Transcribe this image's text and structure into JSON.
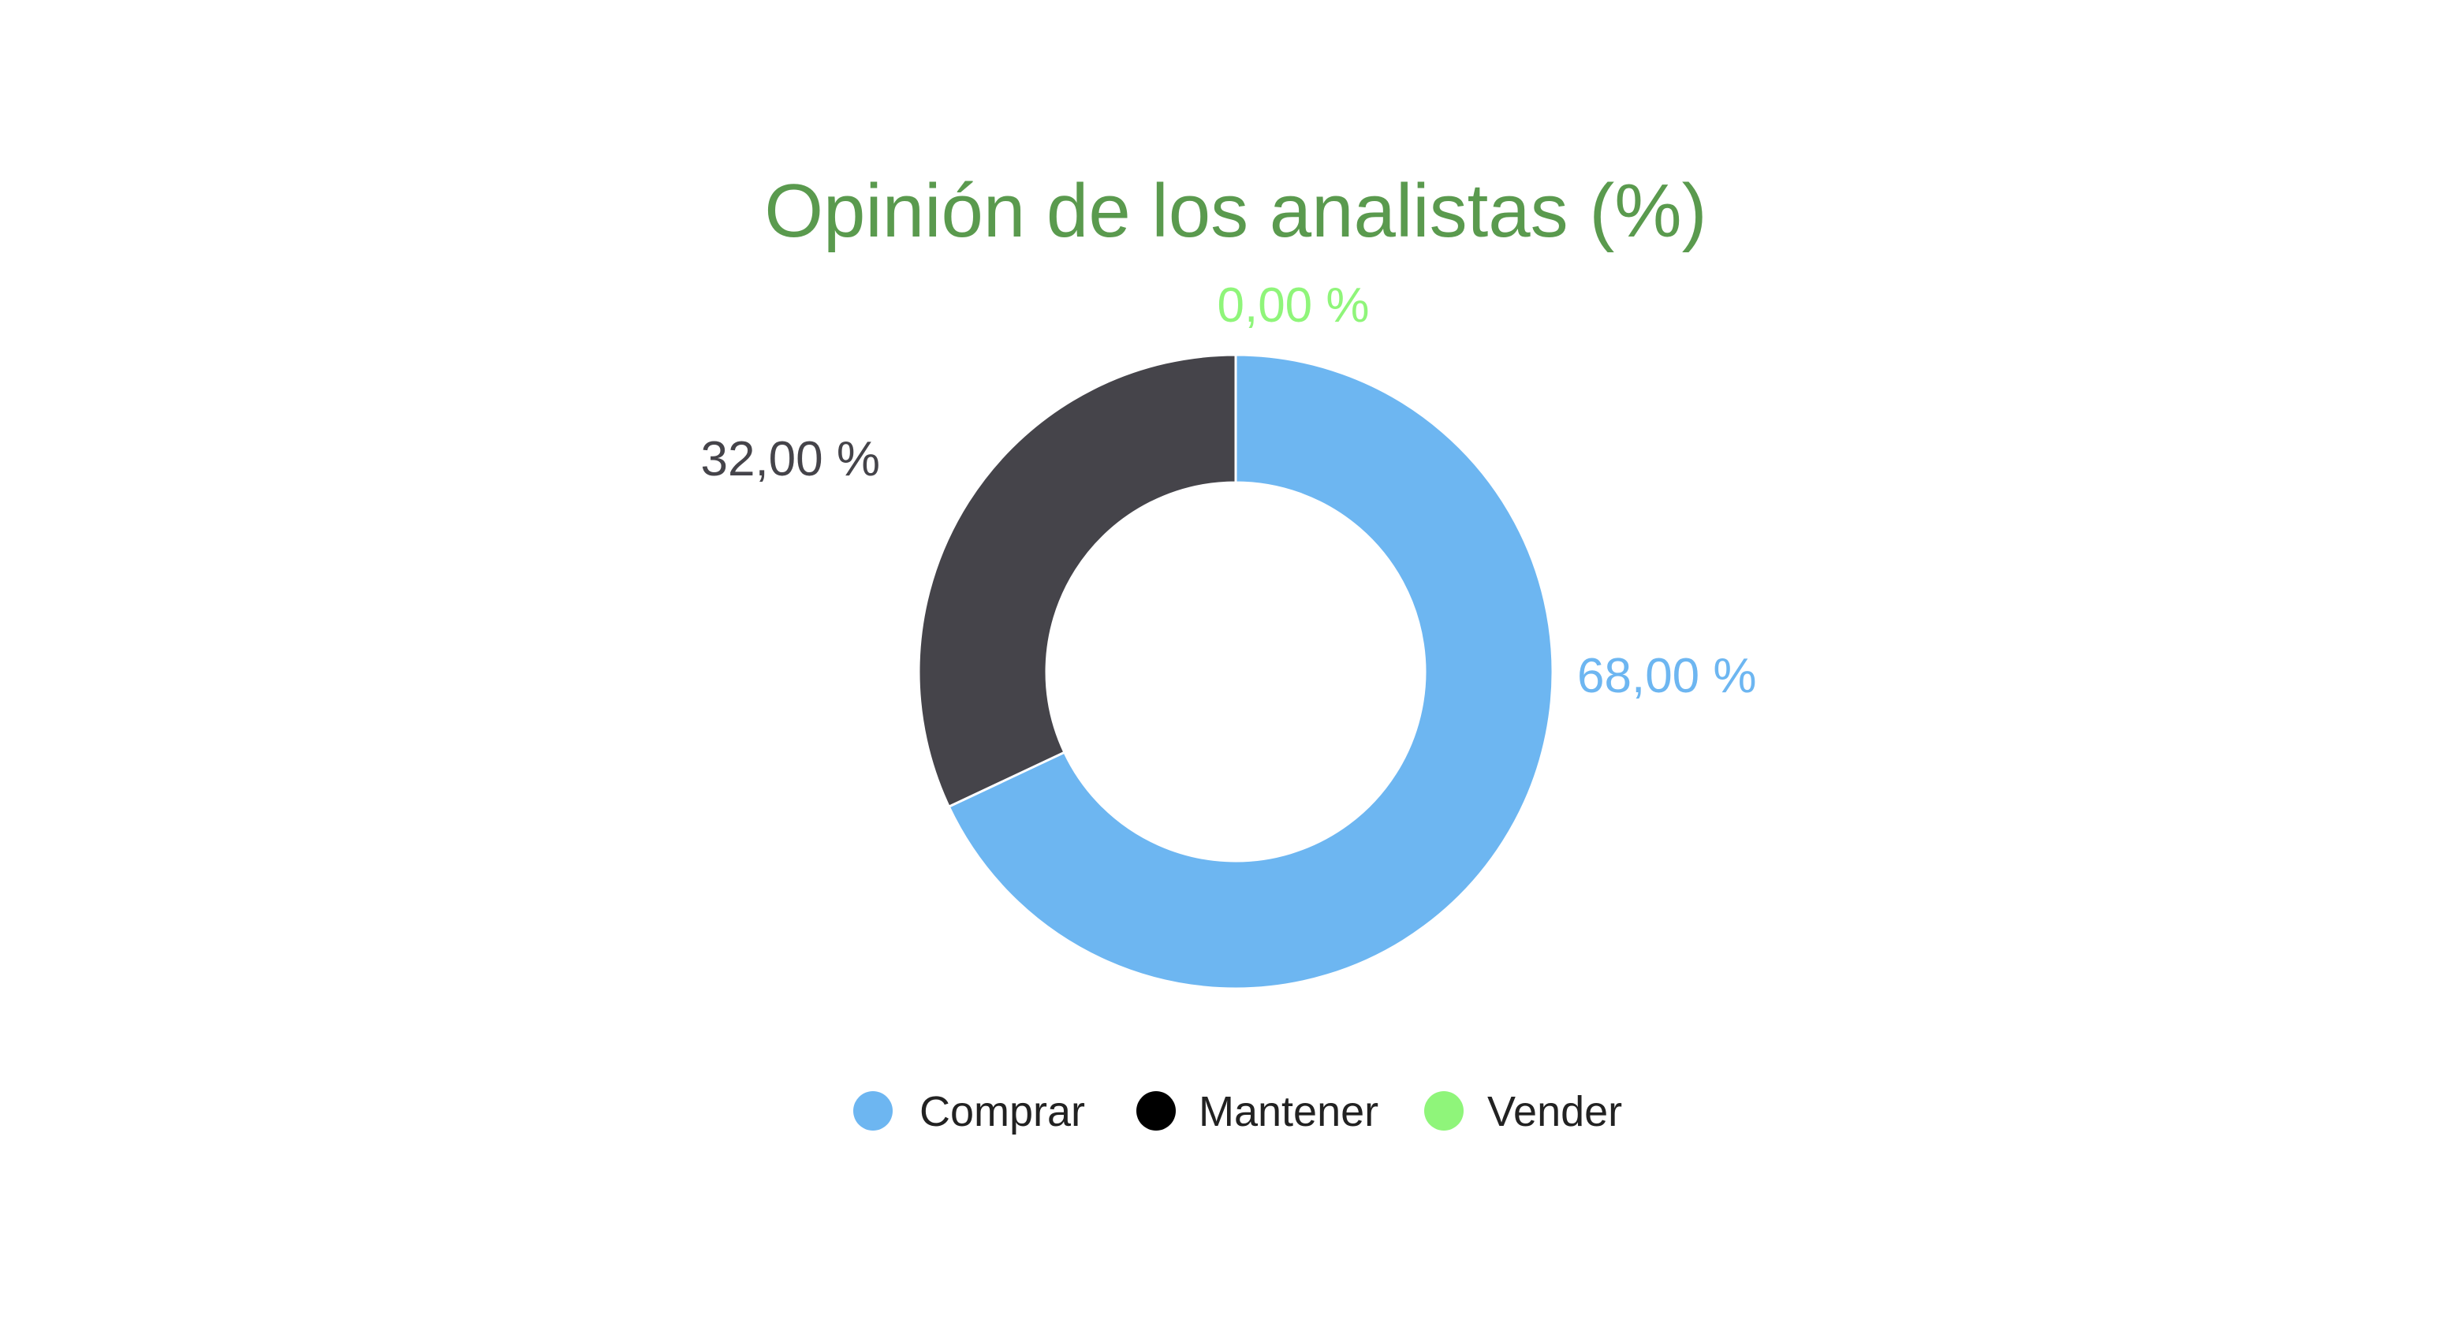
{
  "chart_data": {
    "type": "pie",
    "variant": "donut",
    "title": "Opinión de los analistas (%)",
    "title_color": "#5a9a4e",
    "categories": [
      "Comprar",
      "Mantener",
      "Vender"
    ],
    "values": [
      68.0,
      32.0,
      0.0
    ],
    "value_labels": [
      "68,00 %",
      "32,00 %",
      "0,00 %"
    ],
    "slice_colors": [
      "#6db6f1",
      "#45444a",
      "#8ff57a"
    ],
    "legend_colors": [
      "#6db6f1",
      "#000000",
      "#8ff57a"
    ],
    "start_angle": "top",
    "direction": "clockwise",
    "legend_position": "bottom"
  }
}
